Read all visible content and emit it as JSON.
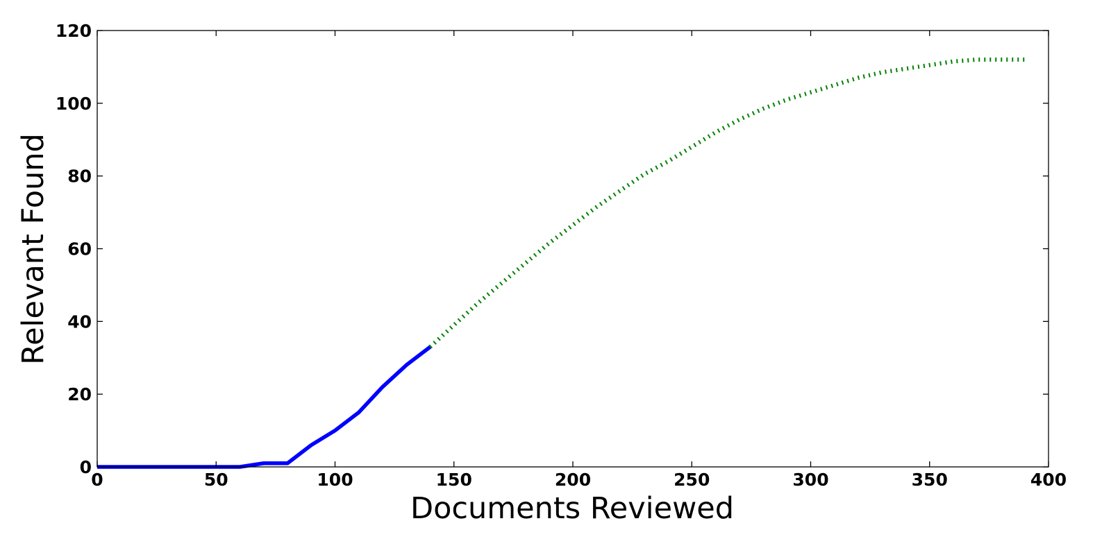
{
  "chart_data": {
    "type": "line",
    "title": "",
    "xlabel": "Documents Reviewed",
    "ylabel": "Relevant Found",
    "xlim": [
      0,
      400
    ],
    "ylim": [
      0,
      120
    ],
    "xticks": [
      "0",
      "50",
      "100",
      "150",
      "200",
      "250",
      "300",
      "350",
      "400"
    ],
    "yticks": [
      "0",
      "20",
      "40",
      "60",
      "80",
      "100",
      "120"
    ],
    "grid": false,
    "legend": "none",
    "series": [
      {
        "style": "solid",
        "color": "#0000ff",
        "x": [
          0,
          10,
          20,
          30,
          40,
          50,
          60,
          70,
          80,
          90,
          100,
          110,
          120,
          130,
          140
        ],
        "y": [
          0,
          0,
          0,
          0,
          0,
          0,
          0,
          1,
          1,
          6,
          10,
          15,
          22,
          28,
          33
        ]
      },
      {
        "style": "dotted",
        "color": "#008000",
        "x": [
          140,
          150,
          160,
          170,
          180,
          190,
          200,
          210,
          220,
          230,
          240,
          250,
          260,
          270,
          280,
          290,
          300,
          310,
          320,
          330,
          340,
          350,
          360,
          370,
          380,
          390
        ],
        "y": [
          33,
          39,
          45,
          50.5,
          56,
          61.5,
          66.5,
          71.5,
          76,
          80.5,
          84,
          88,
          92,
          95.5,
          98.5,
          101,
          103,
          105,
          107,
          108.5,
          109.5,
          110.5,
          111.5,
          112,
          112,
          112
        ]
      }
    ]
  }
}
